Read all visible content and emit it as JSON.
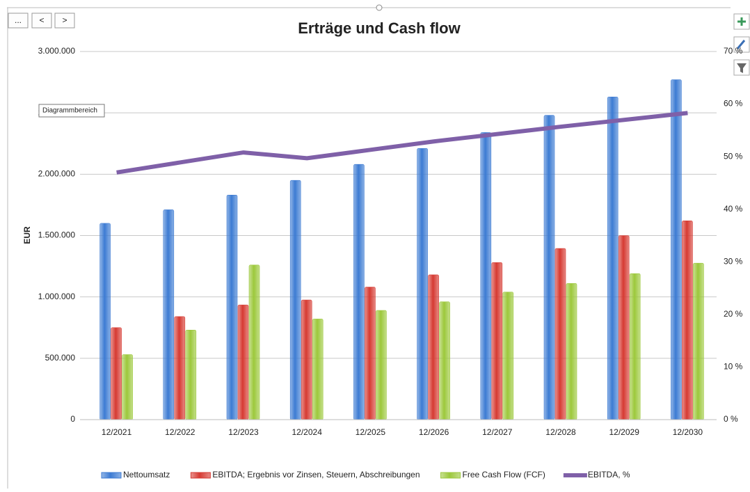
{
  "ui": {
    "buttons": [
      "...",
      "<",
      ">"
    ],
    "tooltip": "Diagrammbereich"
  },
  "chart_data": {
    "type": "bar",
    "title": "Erträge und Cash flow",
    "ylabel": "EUR",
    "categories": [
      "12/2021",
      "12/2022",
      "12/2023",
      "12/2024",
      "12/2025",
      "12/2026",
      "12/2027",
      "12/2028",
      "12/2029",
      "12/2030"
    ],
    "series": [
      {
        "name": "Nettoumsatz",
        "color": "#3c7bd3",
        "values": [
          1600000,
          1710000,
          1830000,
          1950000,
          2080000,
          2210000,
          2340000,
          2480000,
          2630000,
          2770000
        ]
      },
      {
        "name": "EBITDA; Ergebnis vor Zinsen, Steuern, Abschreibungen",
        "color": "#d63a32",
        "values": [
          750000,
          840000,
          935000,
          975000,
          1080000,
          1180000,
          1280000,
          1395000,
          1500000,
          1620000
        ]
      },
      {
        "name": "Free Cash Flow (FCF)",
        "color": "#9cc83b",
        "values": [
          530000,
          730000,
          1260000,
          820000,
          890000,
          960000,
          1040000,
          1110000,
          1190000,
          1275000
        ]
      },
      {
        "name": "EBITDA, %",
        "color": "#7f60a8",
        "type": "line",
        "axis": "y2",
        "values": [
          47,
          48.9,
          50.8,
          49.7,
          51.3,
          52.9,
          54.3,
          55.7,
          57,
          58.3
        ]
      }
    ],
    "ylim": [
      0,
      3000000
    ],
    "yticks": [
      0,
      {
        "value": 500000,
        "label": "500.000"
      },
      {
        "value": 1000000,
        "label": "1.000.000"
      },
      {
        "value": 1500000,
        "label": "1.500.000"
      },
      {
        "value": 2000000,
        "label": "2.000.000"
      },
      {
        "value": 2500000,
        "label": "2.500.000"
      },
      {
        "value": 3000000,
        "label": "3.000.000"
      }
    ],
    "y2lim": [
      0,
      70
    ],
    "y2ticks": [
      {
        "value": 0,
        "label": "0 %"
      },
      {
        "value": 10,
        "label": "10 %"
      },
      {
        "value": 20,
        "label": "20 %"
      },
      {
        "value": 30,
        "label": "30 %"
      },
      {
        "value": 40,
        "label": "40 %"
      },
      {
        "value": 50,
        "label": "50 %"
      },
      {
        "value": 60,
        "label": "60 %"
      },
      {
        "value": 70,
        "label": "70 %"
      }
    ],
    "grid": true,
    "legend": "bottom"
  }
}
